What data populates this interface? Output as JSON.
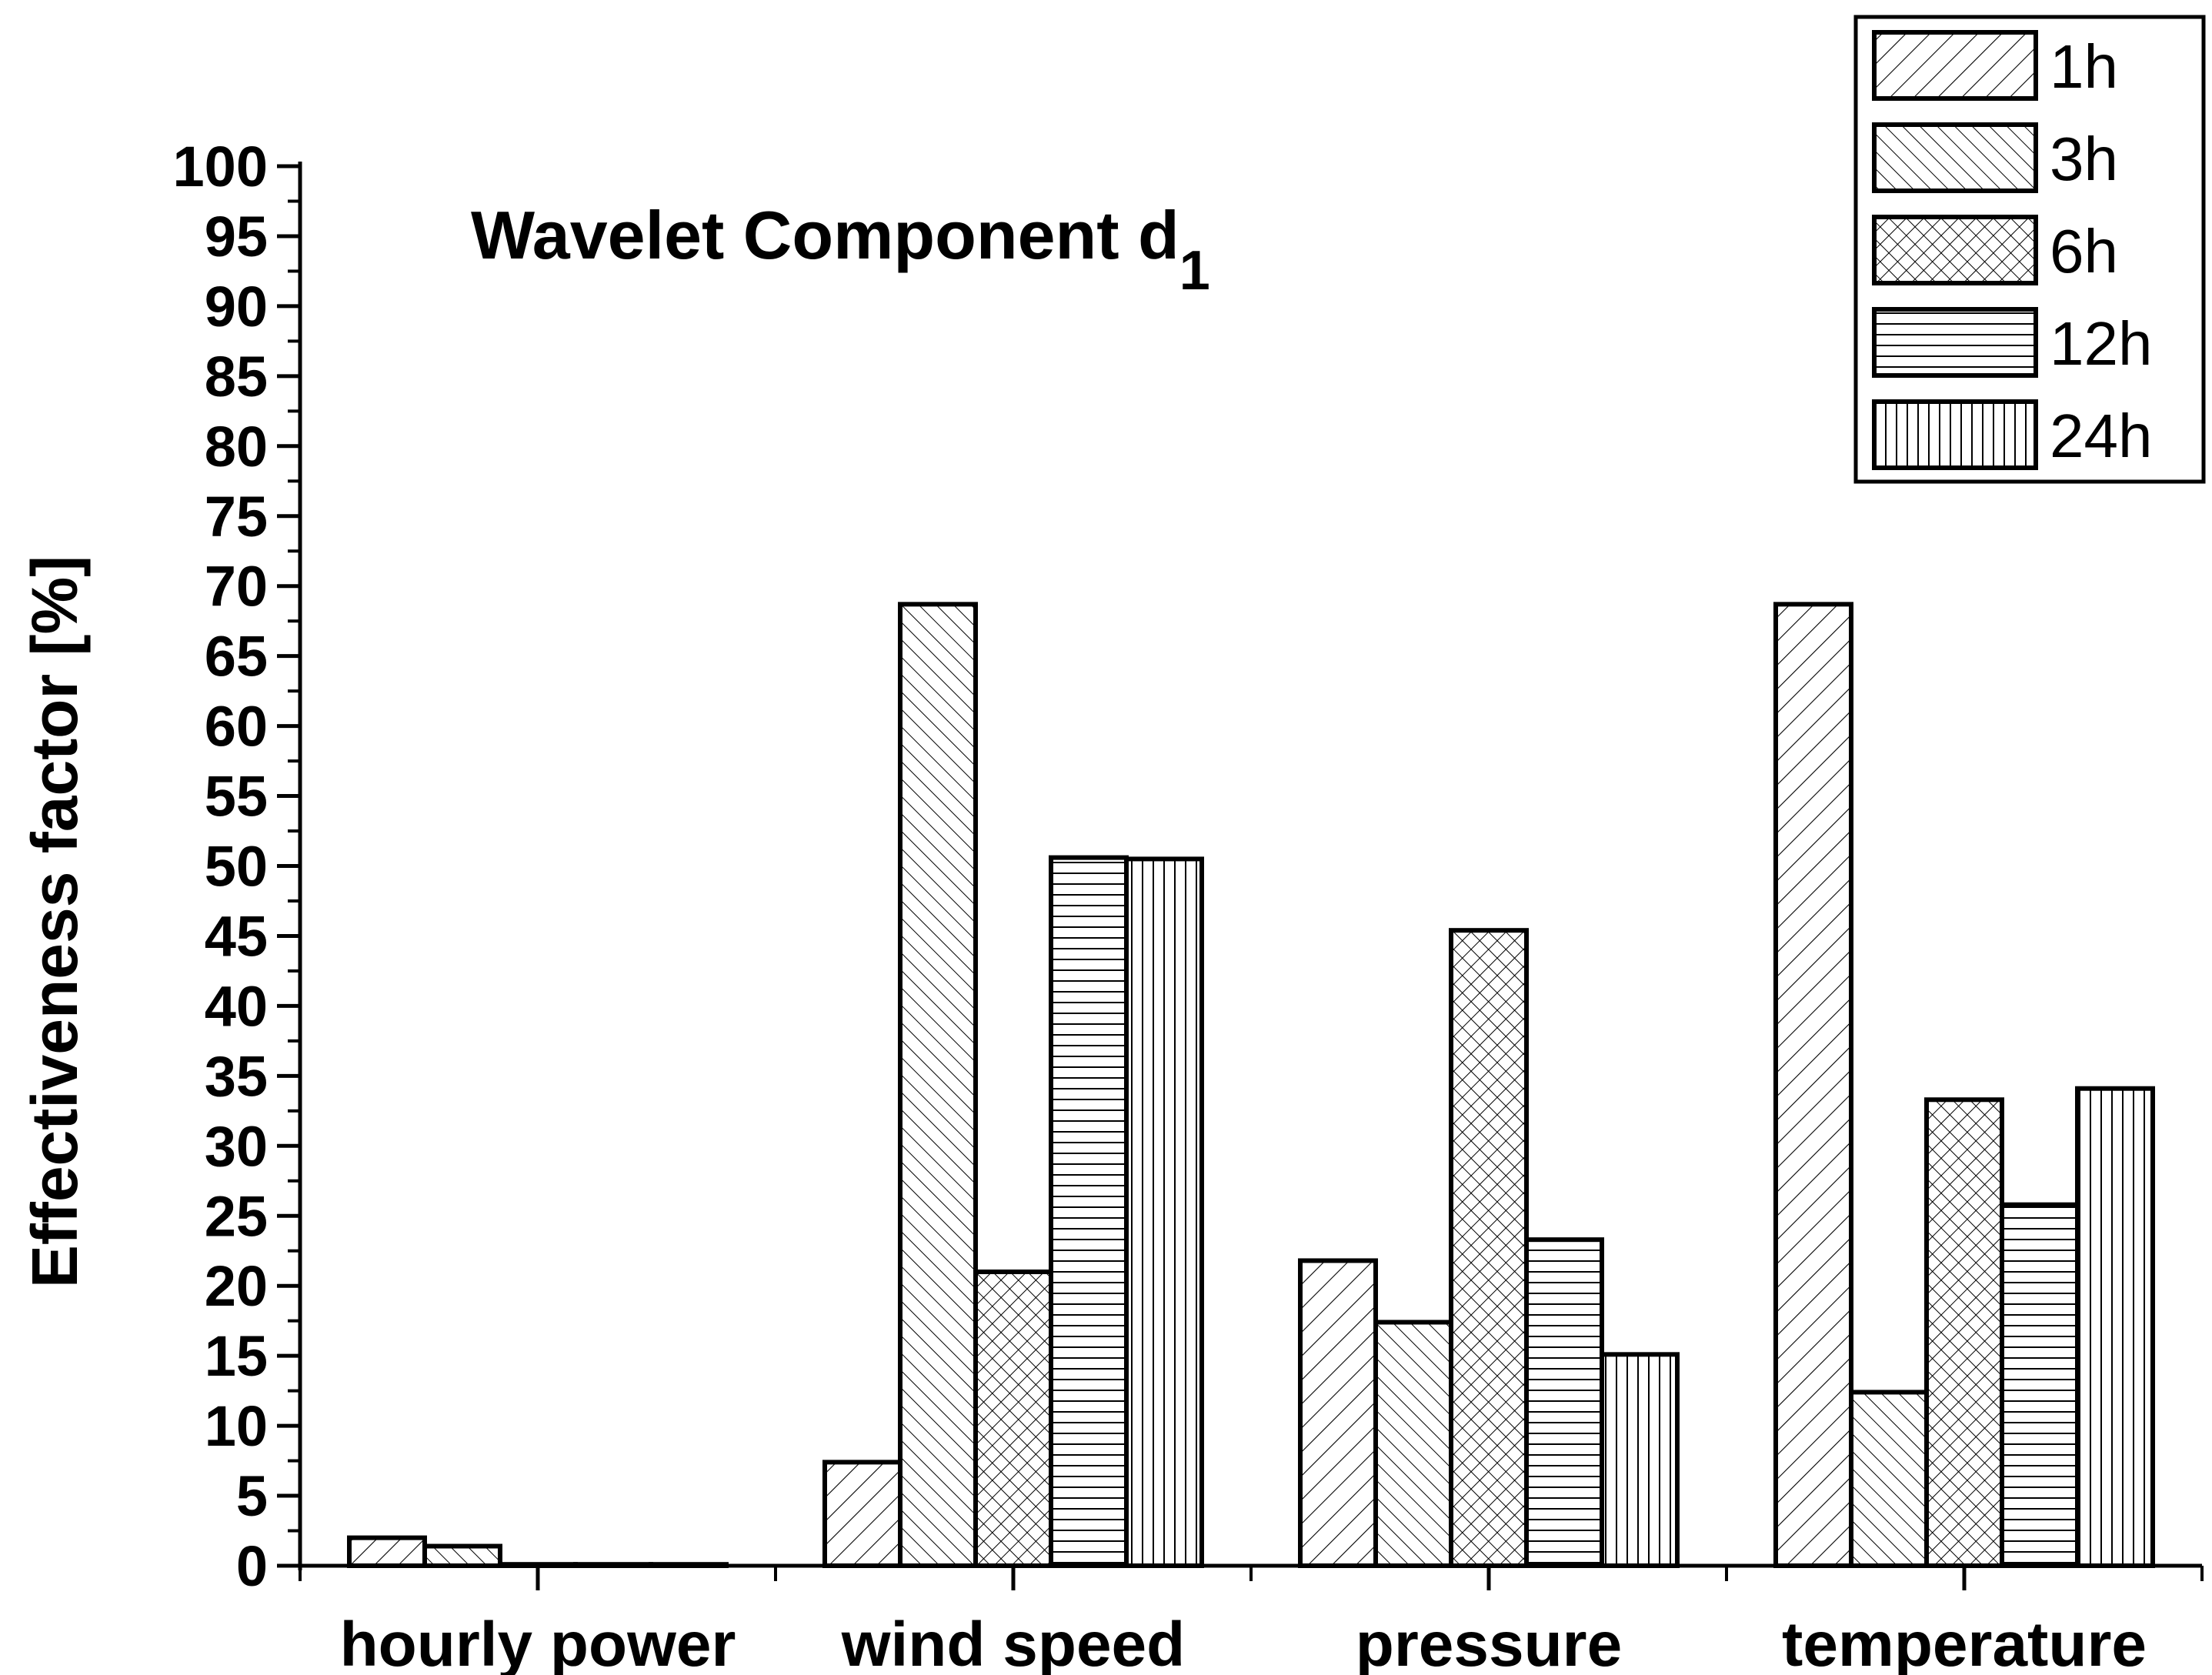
{
  "chart_data": {
    "type": "bar",
    "title": "Wavelet Component d",
    "title_subscript": "1",
    "xlabel": "",
    "ylabel": "Effectiveness factor [%]",
    "ylim": [
      0,
      100
    ],
    "ytick_step": 5,
    "grid": false,
    "legend_position": "top-right",
    "categories": [
      "hourly power",
      "wind speed",
      "pressure",
      "temperature"
    ],
    "series": [
      {
        "name": "1h",
        "pattern": "diag-right",
        "values": [
          2.0,
          7.4,
          21.8,
          68.7
        ]
      },
      {
        "name": "3h",
        "pattern": "diag-left",
        "values": [
          1.4,
          68.7,
          17.4,
          12.4
        ]
      },
      {
        "name": "6h",
        "pattern": "crosshatch",
        "values": [
          0.1,
          21.0,
          45.4,
          33.3
        ]
      },
      {
        "name": "12h",
        "pattern": "horizontal",
        "values": [
          0.1,
          50.6,
          23.3,
          25.8
        ]
      },
      {
        "name": "24h",
        "pattern": "vertical",
        "values": [
          0.1,
          50.5,
          15.1,
          34.1
        ]
      }
    ]
  }
}
